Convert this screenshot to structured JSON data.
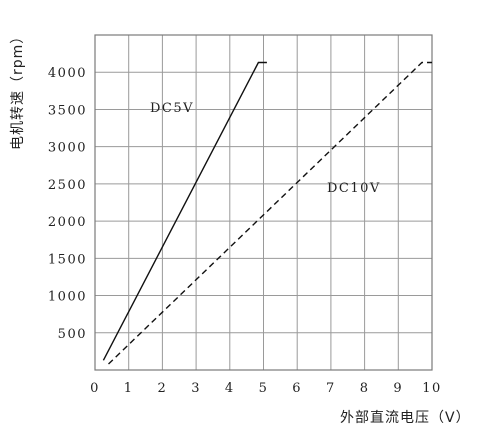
{
  "chart_data": {
    "type": "line",
    "xlabel": "外部直流电压（V）",
    "ylabel": "电机转速（rpm）",
    "xlim": [
      0,
      10
    ],
    "ylim": [
      0,
      4500
    ],
    "x_ticks": [
      "0",
      "1",
      "2",
      "3",
      "4",
      "5",
      "6",
      "7",
      "8",
      "9",
      "10"
    ],
    "y_ticks": [
      "500",
      "1000",
      "1500",
      "2000",
      "2500",
      "3000",
      "3500",
      "4000"
    ],
    "grid": true,
    "series": [
      {
        "name": "DC5V",
        "style": "solid",
        "color": "#111111",
        "points": [
          [
            0.25,
            130
          ],
          [
            4.85,
            4130
          ],
          [
            5.1,
            4130
          ]
        ]
      },
      {
        "name": "DC10V",
        "style": "dashed",
        "color": "#111111",
        "points": [
          [
            0.4,
            80
          ],
          [
            9.7,
            4130
          ],
          [
            10.0,
            4130
          ]
        ]
      }
    ]
  }
}
